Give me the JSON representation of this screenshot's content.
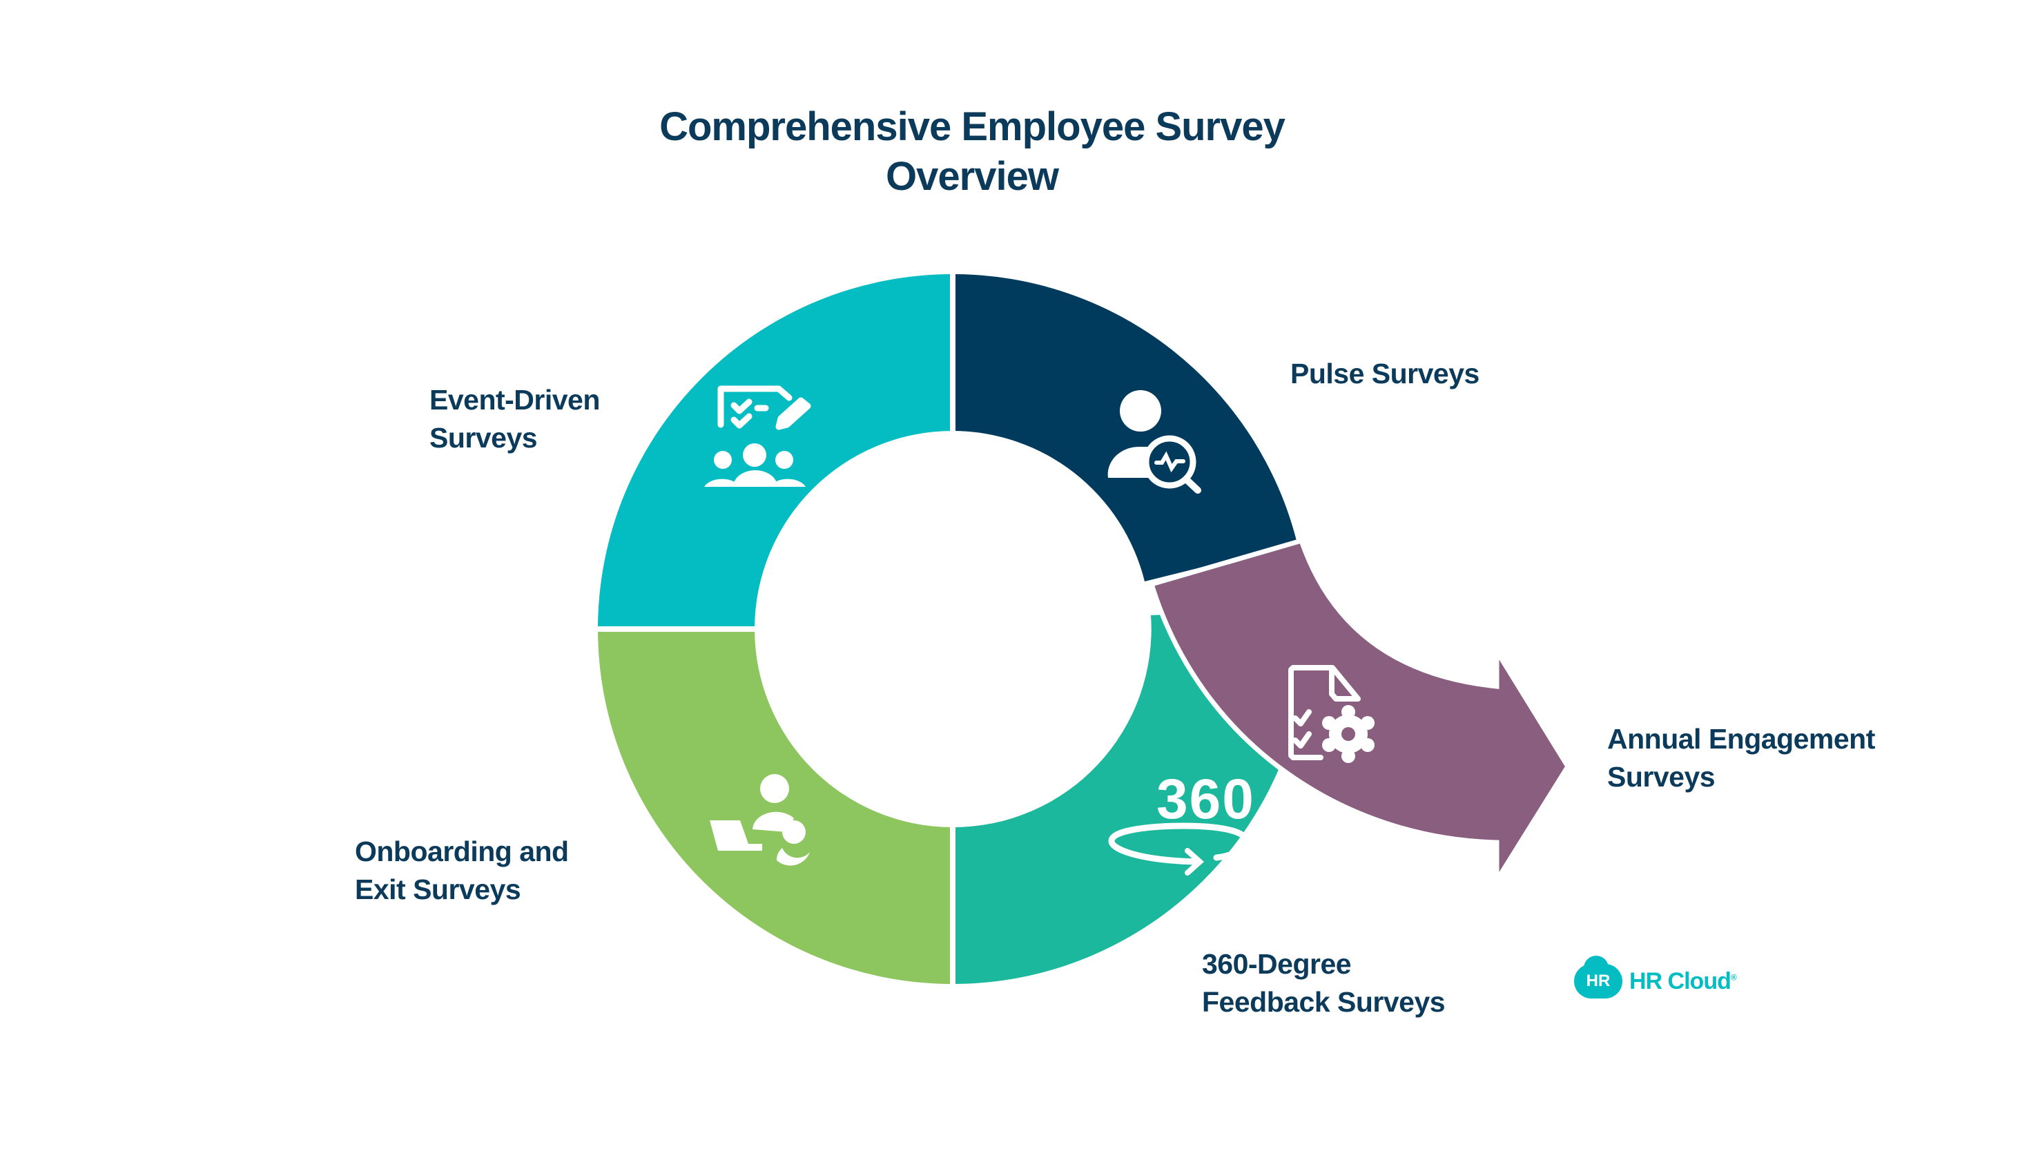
{
  "title": {
    "line1": "Comprehensive Employee Survey",
    "line2": "Overview"
  },
  "segments": [
    {
      "id": "pulse",
      "label_line1": "Pulse Surveys",
      "label_line2": "",
      "color": "#003a5d",
      "icon": "user-search-icon"
    },
    {
      "id": "annual",
      "label_line1": "Annual Engagement",
      "label_line2": "Surveys",
      "color": "#8a5e7e",
      "icon": "document-settings-icon"
    },
    {
      "id": "feedback360",
      "label_line1": "360-Degree",
      "label_line2": "Feedback Surveys",
      "color": "#1cb89d",
      "icon": "rotate-360-icon",
      "icon_text": "360"
    },
    {
      "id": "onboarding",
      "label_line1": "Onboarding and",
      "label_line2": "Exit Surveys",
      "color": "#8dc55e",
      "icon": "laptop-users-icon"
    },
    {
      "id": "event",
      "label_line1": "Event-Driven",
      "label_line2": "Surveys",
      "color": "#03bdc3",
      "icon": "checklist-group-icon"
    }
  ],
  "logo": {
    "badge": "HR",
    "name": "HR Cloud",
    "mark": "®"
  }
}
